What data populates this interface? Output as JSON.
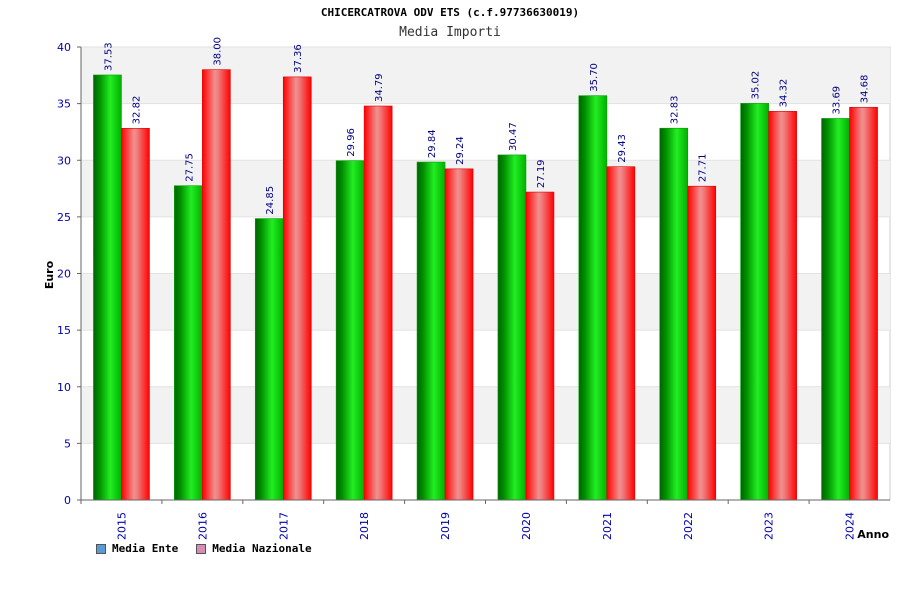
{
  "header": {
    "title": "CHICERCATROVA ODV ETS (c.f.97736630019)",
    "subtitle": "Media Importi"
  },
  "legend": {
    "items": [
      {
        "label": "Media Ente",
        "color": "#5b9bd5"
      },
      {
        "label": "Media Nazionale",
        "color": "#d98cb3"
      }
    ]
  },
  "chart_data": {
    "type": "bar",
    "title": "CHICERCATROVA ODV ETS (c.f.97736630019)",
    "subtitle": "Media Importi",
    "xlabel": "Anno",
    "ylabel": "Euro",
    "ylim": [
      0,
      40
    ],
    "yticks": [
      0,
      5,
      10,
      15,
      20,
      25,
      30,
      35,
      40
    ],
    "categories": [
      "2015",
      "2016",
      "2017",
      "2018",
      "2019",
      "2020",
      "2021",
      "2022",
      "2023",
      "2024"
    ],
    "series": [
      {
        "name": "Media Ente",
        "color": "#00b000",
        "values": [
          37.53,
          27.75,
          24.85,
          29.96,
          29.84,
          30.47,
          35.7,
          32.83,
          35.02,
          33.69
        ]
      },
      {
        "name": "Media Nazionale",
        "color": "#ff0000",
        "values": [
          32.82,
          38.0,
          37.36,
          34.79,
          29.24,
          27.19,
          29.43,
          27.71,
          34.32,
          34.68
        ]
      }
    ],
    "data_labels": [
      [
        "37.53",
        "27.75",
        "24.85",
        "29.96",
        "29.84",
        "30.47",
        "35.70",
        "32.83",
        "35.02",
        "33.69"
      ],
      [
        "32.82",
        "38.00",
        "37.36",
        "34.79",
        "29.24",
        "27.19",
        "29.43",
        "27.71",
        "34.32",
        "34.68"
      ]
    ],
    "grid": true,
    "legend_position": "bottom-left"
  }
}
